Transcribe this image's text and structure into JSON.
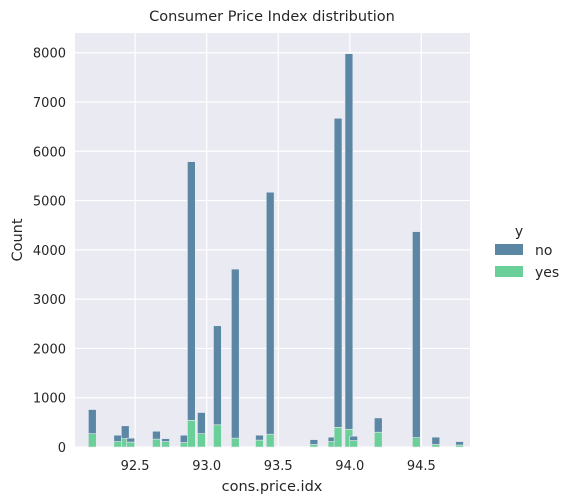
{
  "chart_data": {
    "type": "bar",
    "stacked": true,
    "title": "Consumer Price Index distribution",
    "xlabel": "cons.price.idx",
    "ylabel": "Count",
    "xlim": [
      92.08,
      94.84
    ],
    "ylim": [
      0,
      8400
    ],
    "xticks": [
      "92.5",
      "93.0",
      "93.5",
      "94.0",
      "94.5"
    ],
    "xtick_values": [
      92.5,
      93.0,
      93.5,
      94.0,
      94.5
    ],
    "yticks": [
      "0",
      "1000",
      "2000",
      "3000",
      "4000",
      "5000",
      "6000",
      "7000",
      "8000"
    ],
    "ytick_values": [
      0,
      1000,
      2000,
      3000,
      4000,
      5000,
      6000,
      7000,
      8000
    ],
    "grid": true,
    "legend": {
      "title": "y",
      "position": "right",
      "entries": [
        {
          "label": "no",
          "color": "#5b87a4"
        },
        {
          "label": "yes",
          "color": "#6bcf99"
        }
      ]
    },
    "bin_width": 0.055,
    "bins": [
      {
        "x": 92.201,
        "no": 490,
        "yes": 270
      },
      {
        "x": 92.379,
        "no": 130,
        "yes": 110
      },
      {
        "x": 92.431,
        "no": 260,
        "yes": 170
      },
      {
        "x": 92.469,
        "no": 80,
        "yes": 100
      },
      {
        "x": 92.649,
        "no": 160,
        "yes": 160
      },
      {
        "x": 92.713,
        "no": 60,
        "yes": 110
      },
      {
        "x": 92.843,
        "no": 150,
        "yes": 90
      },
      {
        "x": 92.893,
        "no": 5250,
        "yes": 540
      },
      {
        "x": 92.963,
        "no": 430,
        "yes": 270
      },
      {
        "x": 93.075,
        "no": 2010,
        "yes": 450
      },
      {
        "x": 93.2,
        "no": 3430,
        "yes": 180
      },
      {
        "x": 93.369,
        "no": 100,
        "yes": 140
      },
      {
        "x": 93.444,
        "no": 4910,
        "yes": 260
      },
      {
        "x": 93.749,
        "no": 100,
        "yes": 50
      },
      {
        "x": 93.876,
        "no": 90,
        "yes": 110
      },
      {
        "x": 93.918,
        "no": 6270,
        "yes": 400
      },
      {
        "x": 93.994,
        "no": 7620,
        "yes": 360
      },
      {
        "x": 94.027,
        "no": 90,
        "yes": 130
      },
      {
        "x": 94.199,
        "no": 290,
        "yes": 300
      },
      {
        "x": 94.465,
        "no": 4180,
        "yes": 190
      },
      {
        "x": 94.601,
        "no": 150,
        "yes": 50
      },
      {
        "x": 94.767,
        "no": 70,
        "yes": 40
      }
    ]
  }
}
